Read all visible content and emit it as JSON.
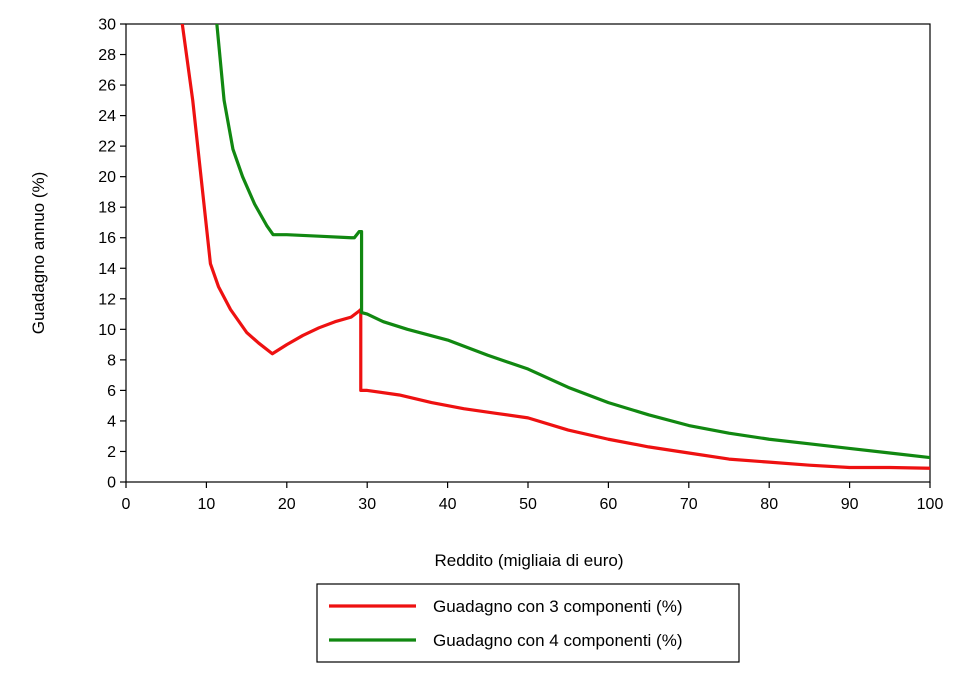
{
  "chart_data": {
    "type": "line",
    "title": "",
    "xlabel": "Reddito (migliaia di euro)",
    "ylabel": "Guadagno annuo (%)",
    "xlim": [
      0,
      100
    ],
    "ylim": [
      0,
      30
    ],
    "xticks": [
      0,
      10,
      20,
      30,
      40,
      50,
      60,
      70,
      80,
      90,
      100
    ],
    "yticks": [
      0,
      2,
      4,
      6,
      8,
      10,
      12,
      14,
      16,
      18,
      20,
      22,
      24,
      26,
      28,
      30
    ],
    "grid": false,
    "legend_position": "bottom",
    "series": [
      {
        "name": "Guadagno con 3 componenti (%)",
        "color": "#ee1111",
        "points": [
          [
            7.0,
            30.0
          ],
          [
            8.3,
            25.0
          ],
          [
            10.5,
            14.3
          ],
          [
            11.5,
            12.8
          ],
          [
            13.0,
            11.3
          ],
          [
            15.0,
            9.8
          ],
          [
            16.5,
            9.1
          ],
          [
            18.2,
            8.4
          ],
          [
            20.0,
            9.0
          ],
          [
            22.0,
            9.6
          ],
          [
            24.0,
            10.1
          ],
          [
            26.0,
            10.5
          ],
          [
            28.0,
            10.8
          ],
          [
            29.0,
            11.2
          ],
          [
            29.2,
            11.3
          ],
          [
            29.2,
            6.0
          ],
          [
            30.0,
            6.0
          ],
          [
            34.0,
            5.7
          ],
          [
            38.0,
            5.2
          ],
          [
            42.0,
            4.8
          ],
          [
            46.0,
            4.5
          ],
          [
            50.0,
            4.2
          ],
          [
            55.0,
            3.4
          ],
          [
            60.0,
            2.8
          ],
          [
            65.0,
            2.3
          ],
          [
            70.0,
            1.9
          ],
          [
            75.0,
            1.5
          ],
          [
            80.0,
            1.3
          ],
          [
            85.0,
            1.1
          ],
          [
            90.0,
            0.95
          ],
          [
            95.0,
            0.95
          ],
          [
            100.0,
            0.9
          ]
        ]
      },
      {
        "name": "Guadagno con 4 componenti (%)",
        "color": "#118811",
        "points": [
          [
            11.3,
            30.0
          ],
          [
            12.2,
            25.0
          ],
          [
            13.3,
            21.8
          ],
          [
            14.5,
            20.0
          ],
          [
            16.0,
            18.2
          ],
          [
            17.5,
            16.8
          ],
          [
            18.3,
            16.2
          ],
          [
            20.0,
            16.2
          ],
          [
            24.0,
            16.1
          ],
          [
            28.0,
            16.0
          ],
          [
            28.4,
            16.0
          ],
          [
            29.0,
            16.4
          ],
          [
            29.3,
            16.4
          ],
          [
            29.3,
            11.1
          ],
          [
            30.0,
            11.0
          ],
          [
            32.0,
            10.5
          ],
          [
            35.0,
            10.0
          ],
          [
            40.0,
            9.3
          ],
          [
            45.0,
            8.3
          ],
          [
            50.0,
            7.4
          ],
          [
            55.0,
            6.2
          ],
          [
            60.0,
            5.2
          ],
          [
            65.0,
            4.4
          ],
          [
            70.0,
            3.7
          ],
          [
            75.0,
            3.2
          ],
          [
            80.0,
            2.8
          ],
          [
            85.0,
            2.5
          ],
          [
            90.0,
            2.2
          ],
          [
            95.0,
            1.9
          ],
          [
            100.0,
            1.6
          ]
        ]
      }
    ]
  }
}
